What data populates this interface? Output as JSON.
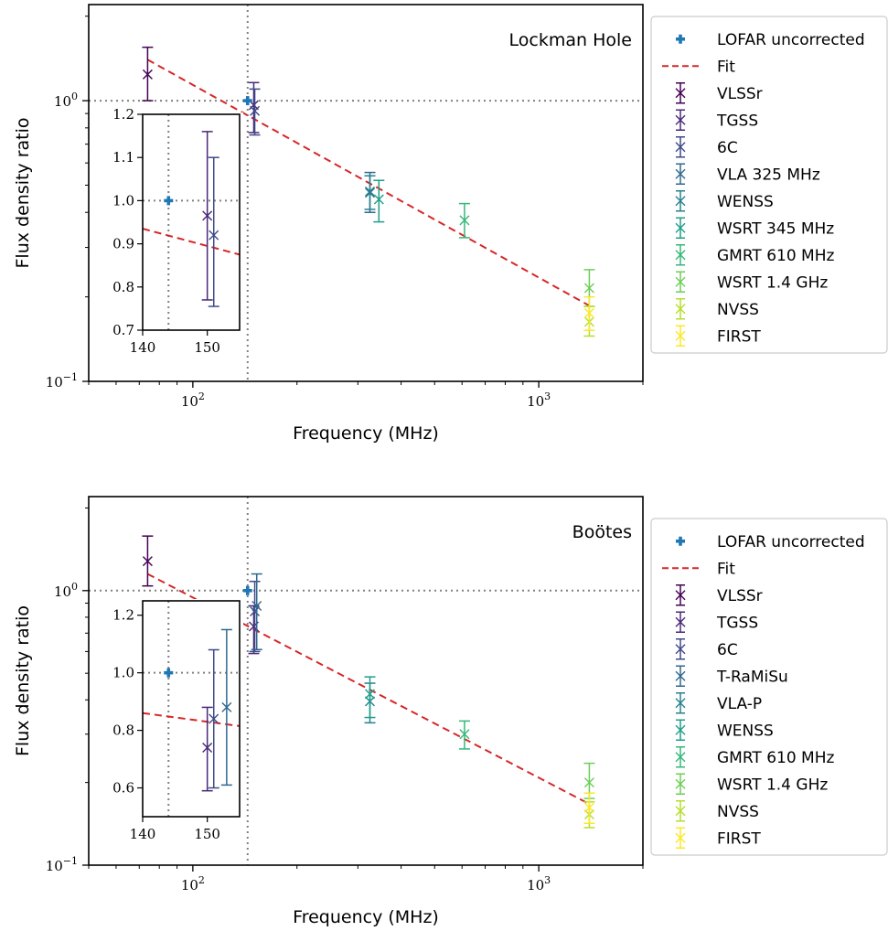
{
  "chart_data": [
    {
      "type": "scatter",
      "annotation": "Lockman Hole",
      "xlabel": "Frequency (MHz)",
      "ylabel": "Flux density ratio",
      "xscale": "log",
      "yscale": "log",
      "xlim": [
        50,
        2000
      ],
      "ylim": [
        0.1,
        2.2
      ],
      "x_ticks": [
        {
          "value": 100,
          "base": "10",
          "exp": "2"
        },
        {
          "value": 1000,
          "base": "10",
          "exp": "3"
        }
      ],
      "y_ticks": [
        {
          "value": 0.1,
          "base": "10",
          "exp": "−1"
        },
        {
          "value": 1,
          "base": "10",
          "exp": "0"
        }
      ],
      "reference_lines": {
        "x": 144,
        "y": 1.0,
        "style": "dotted",
        "color": "#808080"
      },
      "legend_position": "right outside",
      "lofar": {
        "name": "LOFAR uncorrected",
        "x": 144,
        "y": 1.0,
        "color": "#1f77b4"
      },
      "fit": {
        "name": "Fit",
        "x": [
          74,
          1400
        ],
        "y": [
          1.4,
          0.186
        ],
        "color": "#d62728"
      },
      "series": [
        {
          "name": "VLSSr",
          "color": "#440154",
          "points": [
            {
              "x": 74,
              "y": 1.24,
              "ylo": 1.0,
              "yhi": 1.55
            }
          ]
        },
        {
          "name": "TGSS",
          "color": "#482878",
          "points": [
            {
              "x": 150,
              "y": 0.965,
              "ylo": 0.77,
              "yhi": 1.16
            }
          ]
        },
        {
          "name": "6C",
          "color": "#3e4989",
          "points": [
            {
              "x": 151,
              "y": 0.92,
              "ylo": 0.755,
              "yhi": 1.1
            }
          ]
        },
        {
          "name": "VLA 325 MHz",
          "color": "#31688e",
          "points": [
            {
              "x": 325,
              "y": 0.47,
              "ylo": 0.4,
              "yhi": 0.555
            }
          ]
        },
        {
          "name": "WENSS",
          "color": "#26828e",
          "points": [
            {
              "x": 325,
              "y": 0.475,
              "ylo": 0.41,
              "yhi": 0.54
            }
          ]
        },
        {
          "name": "WSRT 345 MHz",
          "color": "#1f9e89",
          "points": [
            {
              "x": 345,
              "y": 0.445,
              "ylo": 0.37,
              "yhi": 0.52
            }
          ]
        },
        {
          "name": "GMRT 610 MHz",
          "color": "#35b779",
          "points": [
            {
              "x": 610,
              "y": 0.375,
              "ylo": 0.325,
              "yhi": 0.43
            }
          ]
        },
        {
          "name": "WSRT 1.4 GHz",
          "color": "#6ece58",
          "points": [
            {
              "x": 1400,
              "y": 0.215,
              "ylo": 0.185,
              "yhi": 0.25
            }
          ]
        },
        {
          "name": "NVSS",
          "color": "#b5de2b",
          "points": [
            {
              "x": 1400,
              "y": 0.163,
              "ylo": 0.145,
              "yhi": 0.185
            }
          ]
        },
        {
          "name": "FIRST",
          "color": "#fde725",
          "points": [
            {
              "x": 1400,
              "y": 0.175,
              "ylo": 0.152,
              "yhi": 0.2
            }
          ]
        }
      ],
      "inset": {
        "xlim": [
          140,
          155
        ],
        "ylim": [
          0.7,
          1.2
        ],
        "x_ticks": [
          140,
          150
        ],
        "y_ticks": [
          "0.7",
          "0.8",
          "0.9",
          "1.0",
          "1.1",
          "1.2"
        ],
        "fit_y": [
          0.935,
          0.875
        ]
      }
    },
    {
      "type": "scatter",
      "annotation": "Boötes",
      "xlabel": "Frequency (MHz)",
      "ylabel": "Flux density ratio",
      "xscale": "log",
      "yscale": "log",
      "xlim": [
        50,
        2000
      ],
      "ylim": [
        0.1,
        2.2
      ],
      "x_ticks": [
        {
          "value": 100,
          "base": "10",
          "exp": "2"
        },
        {
          "value": 1000,
          "base": "10",
          "exp": "3"
        }
      ],
      "y_ticks": [
        {
          "value": 0.1,
          "base": "10",
          "exp": "−1"
        },
        {
          "value": 1,
          "base": "10",
          "exp": "0"
        }
      ],
      "reference_lines": {
        "x": 144,
        "y": 1.0,
        "style": "dotted",
        "color": "#808080"
      },
      "legend_position": "right outside",
      "lofar": {
        "name": "LOFAR uncorrected",
        "x": 144,
        "y": 1.0,
        "color": "#1f77b4"
      },
      "fit": {
        "name": "Fit",
        "x": [
          74,
          1400
        ],
        "y": [
          1.15,
          0.167
        ],
        "color": "#d62728"
      },
      "series": [
        {
          "name": "VLSSr",
          "color": "#440154",
          "points": [
            {
              "x": 74,
              "y": 1.28,
              "ylo": 1.04,
              "yhi": 1.58
            }
          ]
        },
        {
          "name": "TGSS",
          "color": "#482878",
          "points": [
            {
              "x": 150,
              "y": 0.74,
              "ylo": 0.59,
              "yhi": 0.88
            }
          ]
        },
        {
          "name": "6C",
          "color": "#3e4989",
          "points": [
            {
              "x": 151,
              "y": 0.84,
              "ylo": 0.6,
              "yhi": 1.08
            }
          ]
        },
        {
          "name": "T-RaMiSu",
          "color": "#31688e",
          "points": [
            {
              "x": 153,
              "y": 0.88,
              "ylo": 0.61,
              "yhi": 1.15
            }
          ]
        },
        {
          "name": "VLA-P",
          "color": "#26828e",
          "points": [
            {
              "x": 325,
              "y": 0.395,
              "ylo": 0.33,
              "yhi": 0.46
            }
          ]
        },
        {
          "name": "WENSS",
          "color": "#1f9e89",
          "points": [
            {
              "x": 325,
              "y": 0.42,
              "ylo": 0.345,
              "yhi": 0.485
            }
          ]
        },
        {
          "name": "GMRT 610 MHz",
          "color": "#35b779",
          "points": [
            {
              "x": 610,
              "y": 0.3,
              "ylo": 0.265,
              "yhi": 0.335
            }
          ]
        },
        {
          "name": "WSRT 1.4 GHz",
          "color": "#6ece58",
          "points": [
            {
              "x": 1400,
              "y": 0.2,
              "ylo": 0.175,
              "yhi": 0.235
            }
          ]
        },
        {
          "name": "NVSS",
          "color": "#b5de2b",
          "points": [
            {
              "x": 1400,
              "y": 0.153,
              "ylo": 0.137,
              "yhi": 0.17
            }
          ]
        },
        {
          "name": "FIRST",
          "color": "#fde725",
          "points": [
            {
              "x": 1400,
              "y": 0.162,
              "ylo": 0.142,
              "yhi": 0.183
            }
          ]
        }
      ],
      "inset": {
        "xlim": [
          140,
          155
        ],
        "ylim": [
          0.5,
          1.25
        ],
        "x_ticks": [
          140,
          150
        ],
        "y_ticks": [
          "0.6",
          "0.8",
          "1.0",
          "1.2"
        ],
        "fit_y": [
          0.86,
          0.815
        ]
      }
    }
  ]
}
